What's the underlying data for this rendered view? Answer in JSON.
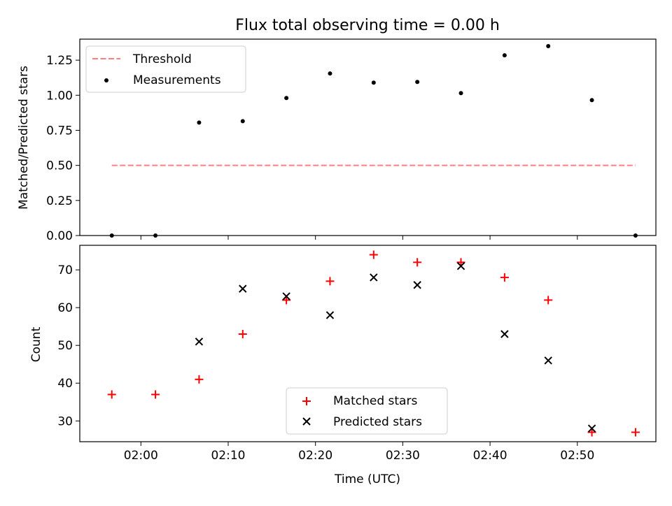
{
  "chart_data": [
    {
      "type": "scatter",
      "title": "Flux total observing time = 0.00 h",
      "xlabel": "",
      "ylabel": "Matched/Predicted stars",
      "xlim": [
        "01:53",
        "02:59"
      ],
      "ylim": [
        0,
        1.4
      ],
      "yticks": [
        "0.00",
        "0.25",
        "0.50",
        "0.75",
        "1.00",
        "1.25"
      ],
      "legend": "top-left",
      "grid": false,
      "series": [
        {
          "name": "Threshold",
          "kind": "dashed-line",
          "color": "#ff7f7f",
          "x": [
            "01:56:40",
            "02:56:40"
          ],
          "y": [
            0.5,
            0.5
          ]
        },
        {
          "name": "Measurements",
          "kind": "dot",
          "color": "#000000",
          "x": [
            "01:56:40",
            "02:01:40",
            "02:06:40",
            "02:11:40",
            "02:16:40",
            "02:21:40",
            "02:26:40",
            "02:31:40",
            "02:36:40",
            "02:41:40",
            "02:46:40",
            "02:51:40",
            "02:56:40"
          ],
          "y": [
            0.0,
            0.0,
            0.805,
            0.815,
            0.98,
            1.155,
            1.09,
            1.095,
            1.015,
            1.285,
            1.35,
            0.965,
            0.0
          ]
        }
      ]
    },
    {
      "type": "scatter",
      "title": "",
      "xlabel": "Time (UTC)",
      "ylabel": "Count",
      "xlim": [
        "01:53",
        "02:59"
      ],
      "ylim": [
        24.5,
        76.5
      ],
      "yticks": [
        "30",
        "40",
        "50",
        "60",
        "70"
      ],
      "xticks": [
        "02:00",
        "02:10",
        "02:20",
        "02:30",
        "02:40",
        "02:50"
      ],
      "legend": "bottom-center",
      "grid": false,
      "series": [
        {
          "name": "Matched stars",
          "kind": "plus",
          "color": "#ff0000",
          "x": [
            "01:56:40",
            "02:01:40",
            "02:06:40",
            "02:11:40",
            "02:16:40",
            "02:21:40",
            "02:26:40",
            "02:31:40",
            "02:36:40",
            "02:41:40",
            "02:46:40",
            "02:51:40",
            "02:56:40"
          ],
          "y": [
            37,
            37,
            41,
            53,
            62,
            67,
            74,
            72,
            72,
            68,
            62,
            27,
            27
          ]
        },
        {
          "name": "Predicted stars",
          "kind": "x",
          "color": "#000000",
          "x": [
            "02:06:40",
            "02:11:40",
            "02:16:40",
            "02:21:40",
            "02:26:40",
            "02:31:40",
            "02:36:40",
            "02:41:40",
            "02:46:40",
            "02:51:40"
          ],
          "y": [
            51,
            65,
            63,
            58,
            68,
            66,
            71,
            53,
            46,
            28
          ]
        }
      ]
    }
  ]
}
